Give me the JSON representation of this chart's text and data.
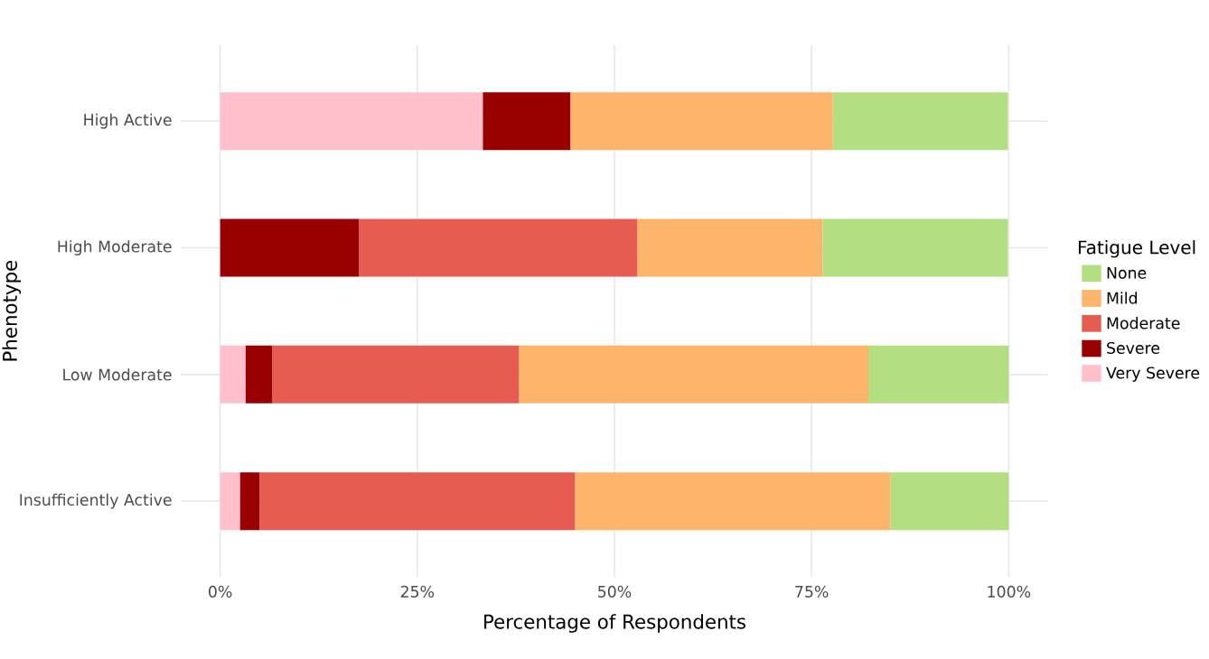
{
  "chart_data": {
    "type": "bar",
    "orientation": "horizontal",
    "stacked": true,
    "xlabel": "Percentage of Respondents",
    "ylabel": "Phenotype",
    "legend_title": "Fatigue Level",
    "legend": "right",
    "grid": true,
    "categories": [
      "High Active",
      "High Moderate",
      "Low Moderate",
      "Insufficiently Active"
    ],
    "xlim": [
      -5,
      105
    ],
    "xticks": [
      {
        "value": 0,
        "label": "0%"
      },
      {
        "value": 25,
        "label": "25%"
      },
      {
        "value": 50,
        "label": "50%"
      },
      {
        "value": 75,
        "label": "75%"
      },
      {
        "value": 100,
        "label": "100%"
      }
    ],
    "series": [
      {
        "name": "Very Severe",
        "color": "#ffc0cb",
        "values": [
          33.3,
          0,
          3.2,
          2.5
        ]
      },
      {
        "name": "Severe",
        "color": "#990000",
        "values": [
          11.1,
          17.6,
          3.4,
          2.5
        ]
      },
      {
        "name": "Moderate",
        "color": "#e65c50",
        "values": [
          0,
          35.3,
          31.3,
          40
        ]
      },
      {
        "name": "Mild",
        "color": "#fdb46b",
        "values": [
          33.3,
          23.5,
          44.3,
          40
        ]
      },
      {
        "name": "None",
        "color": "#b3de81",
        "values": [
          22.2,
          23.5,
          17.8,
          15
        ]
      }
    ]
  }
}
